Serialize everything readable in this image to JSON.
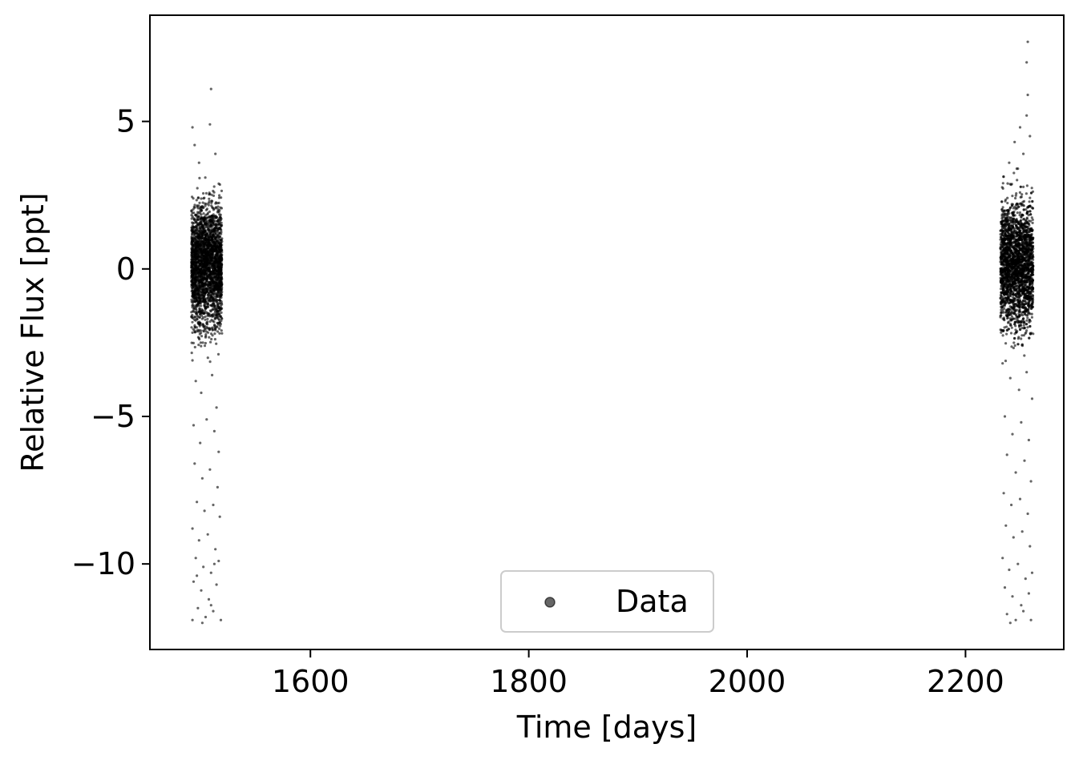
{
  "chart_data": {
    "type": "scatter",
    "title": "",
    "xlabel": "Time [days]",
    "ylabel": "Relative Flux [ppt]",
    "xlim": [
      1453,
      2290
    ],
    "ylim": [
      -12.9,
      8.6
    ],
    "x_ticks": [
      {
        "value": 1600,
        "label": "1600"
      },
      {
        "value": 1800,
        "label": "1800"
      },
      {
        "value": 2000,
        "label": "2000"
      },
      {
        "value": 2200,
        "label": "2200"
      }
    ],
    "y_ticks": [
      {
        "value": 5,
        "label": "5"
      },
      {
        "value": 0,
        "label": "0"
      },
      {
        "value": -5,
        "label": "−5"
      },
      {
        "value": -10,
        "label": "−10"
      }
    ],
    "grid": false,
    "legend": {
      "placement": "lower center",
      "entries": [
        "Data"
      ]
    },
    "marker_color": "#000000",
    "marker_alpha": 0.6,
    "series": [
      {
        "name": "Data",
        "clusters": [
          {
            "x_range": [
              1491,
              1519
            ],
            "core_y_range": [
              -2.5,
              2.8
            ],
            "dense_points": 2600,
            "tail_points": [
              [
                1492,
                4.8
              ],
              [
                1509,
                6.1
              ],
              [
                1508,
                4.9
              ],
              [
                1494,
                4.2
              ],
              [
                1498,
                3.6
              ],
              [
                1513,
                3.9
              ],
              [
                1492,
                -3.1
              ],
              [
                1495,
                -3.8
              ],
              [
                1500,
                -4.2
              ],
              [
                1510,
                -3.6
              ],
              [
                1514,
                -4.7
              ],
              [
                1493,
                -5.3
              ],
              [
                1499,
                -5.9
              ],
              [
                1505,
                -5.1
              ],
              [
                1512,
                -5.5
              ],
              [
                1516,
                -6.2
              ],
              [
                1494,
                -6.6
              ],
              [
                1501,
                -7.1
              ],
              [
                1508,
                -6.8
              ],
              [
                1515,
                -7.4
              ],
              [
                1496,
                -7.9
              ],
              [
                1503,
                -8.2
              ],
              [
                1511,
                -8.0
              ],
              [
                1517,
                -8.4
              ],
              [
                1492,
                -8.8
              ],
              [
                1498,
                -9.2
              ],
              [
                1506,
                -9.0
              ],
              [
                1513,
                -9.5
              ],
              [
                1495,
                -9.8
              ],
              [
                1502,
                -10.1
              ],
              [
                1509,
                -10.3
              ],
              [
                1516,
                -9.9
              ],
              [
                1493,
                -10.6
              ],
              [
                1500,
                -10.9
              ],
              [
                1507,
                -11.2
              ],
              [
                1514,
                -10.7
              ],
              [
                1497,
                -11.5
              ],
              [
                1504,
                -11.8
              ],
              [
                1511,
                -11.6
              ],
              [
                1518,
                -11.9
              ],
              [
                1492,
                -11.9
              ],
              [
                1501,
                -12.0
              ],
              [
                1509,
                -11.4
              ],
              [
                1496,
                -10.4
              ],
              [
                1512,
                -10.0
              ]
            ]
          },
          {
            "x_range": [
              2232,
              2262
            ],
            "core_y_range": [
              -2.5,
              2.8
            ],
            "dense_points": 2600,
            "tail_points": [
              [
                2257,
                7.7
              ],
              [
                2256,
                7.0
              ],
              [
                2257,
                5.9
              ],
              [
                2256,
                5.2
              ],
              [
                2250,
                4.8
              ],
              [
                2245,
                4.3
              ],
              [
                2253,
                3.9
              ],
              [
                2240,
                3.6
              ],
              [
                2259,
                4.5
              ],
              [
                2248,
                3.4
              ],
              [
                2234,
                -3.2
              ],
              [
                2241,
                -3.7
              ],
              [
                2249,
                -4.1
              ],
              [
                2256,
                -3.5
              ],
              [
                2261,
                -4.4
              ],
              [
                2236,
                -5.0
              ],
              [
                2243,
                -5.6
              ],
              [
                2251,
                -5.2
              ],
              [
                2258,
                -5.8
              ],
              [
                2238,
                -6.3
              ],
              [
                2246,
                -6.9
              ],
              [
                2254,
                -6.5
              ],
              [
                2260,
                -7.2
              ],
              [
                2235,
                -7.6
              ],
              [
                2242,
                -8.0
              ],
              [
                2250,
                -7.8
              ],
              [
                2257,
                -8.3
              ],
              [
                2237,
                -8.7
              ],
              [
                2244,
                -9.1
              ],
              [
                2252,
                -8.9
              ],
              [
                2259,
                -9.4
              ],
              [
                2234,
                -9.8
              ],
              [
                2240,
                -10.2
              ],
              [
                2248,
                -10.0
              ],
              [
                2255,
                -10.5
              ],
              [
                2261,
                -10.3
              ],
              [
                2236,
                -10.8
              ],
              [
                2243,
                -11.1
              ],
              [
                2251,
                -11.4
              ],
              [
                2258,
                -11.0
              ],
              [
                2238,
                -11.7
              ],
              [
                2246,
                -11.9
              ],
              [
                2253,
                -11.6
              ],
              [
                2260,
                -11.9
              ],
              [
                2241,
                -12.0
              ]
            ]
          }
        ]
      }
    ]
  }
}
